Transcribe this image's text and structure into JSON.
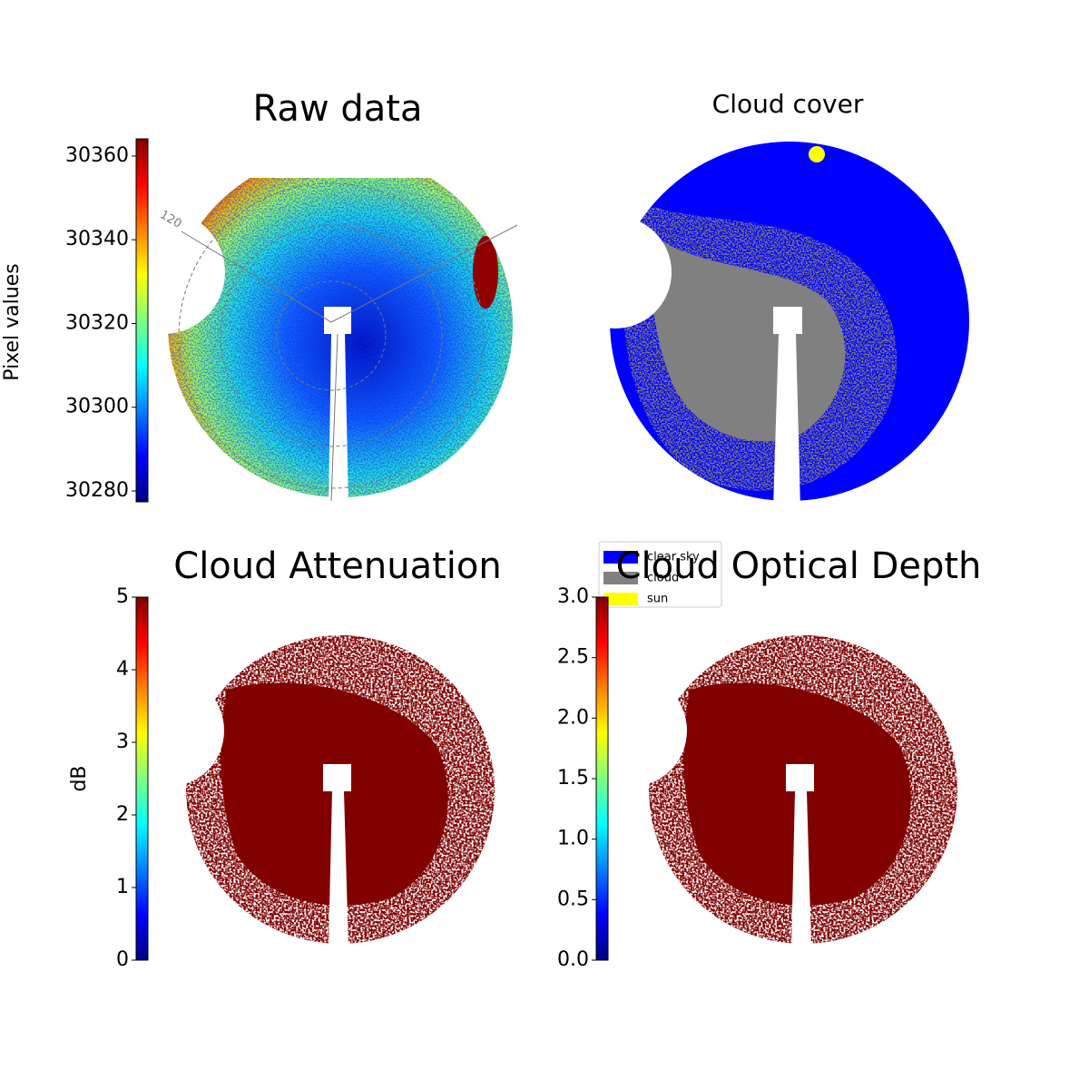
{
  "chart_data": [
    {
      "type": "image",
      "title": "Raw data",
      "colorbar_label": "Pixel values",
      "colormap": "jet",
      "ylim": [
        30277.4,
        30364.1
      ],
      "yticks": [
        30280,
        30300,
        30320,
        30340,
        30360
      ],
      "polar_labels": [
        "120"
      ]
    },
    {
      "type": "image",
      "title": "Cloud cover",
      "legend": "lower left",
      "series": [
        {
          "name": "clear sky",
          "color": "#0000ff"
        },
        {
          "name": "cloud",
          "color": "#808080"
        },
        {
          "name": "sun",
          "color": "#ffff00"
        }
      ]
    },
    {
      "type": "image",
      "title": "Cloud Attenuation",
      "colorbar_label": "dB",
      "colormap": "jet",
      "ylim": [
        0,
        5
      ],
      "yticks": [
        0,
        1,
        2,
        3,
        4,
        5
      ]
    },
    {
      "type": "image",
      "title": "Cloud Optical Depth",
      "colormap": "jet",
      "ylim": [
        0,
        3
      ],
      "yticks": [
        {
          "value": 0,
          "label": "0.0"
        },
        {
          "value": 0.5,
          "label": "0.5"
        },
        {
          "value": 1,
          "label": "1.0"
        },
        {
          "value": 1.5,
          "label": "1.5"
        },
        {
          "value": 2,
          "label": "2.0"
        },
        {
          "value": 2.5,
          "label": "2.5"
        },
        {
          "value": 3,
          "label": "3.0"
        }
      ]
    }
  ]
}
